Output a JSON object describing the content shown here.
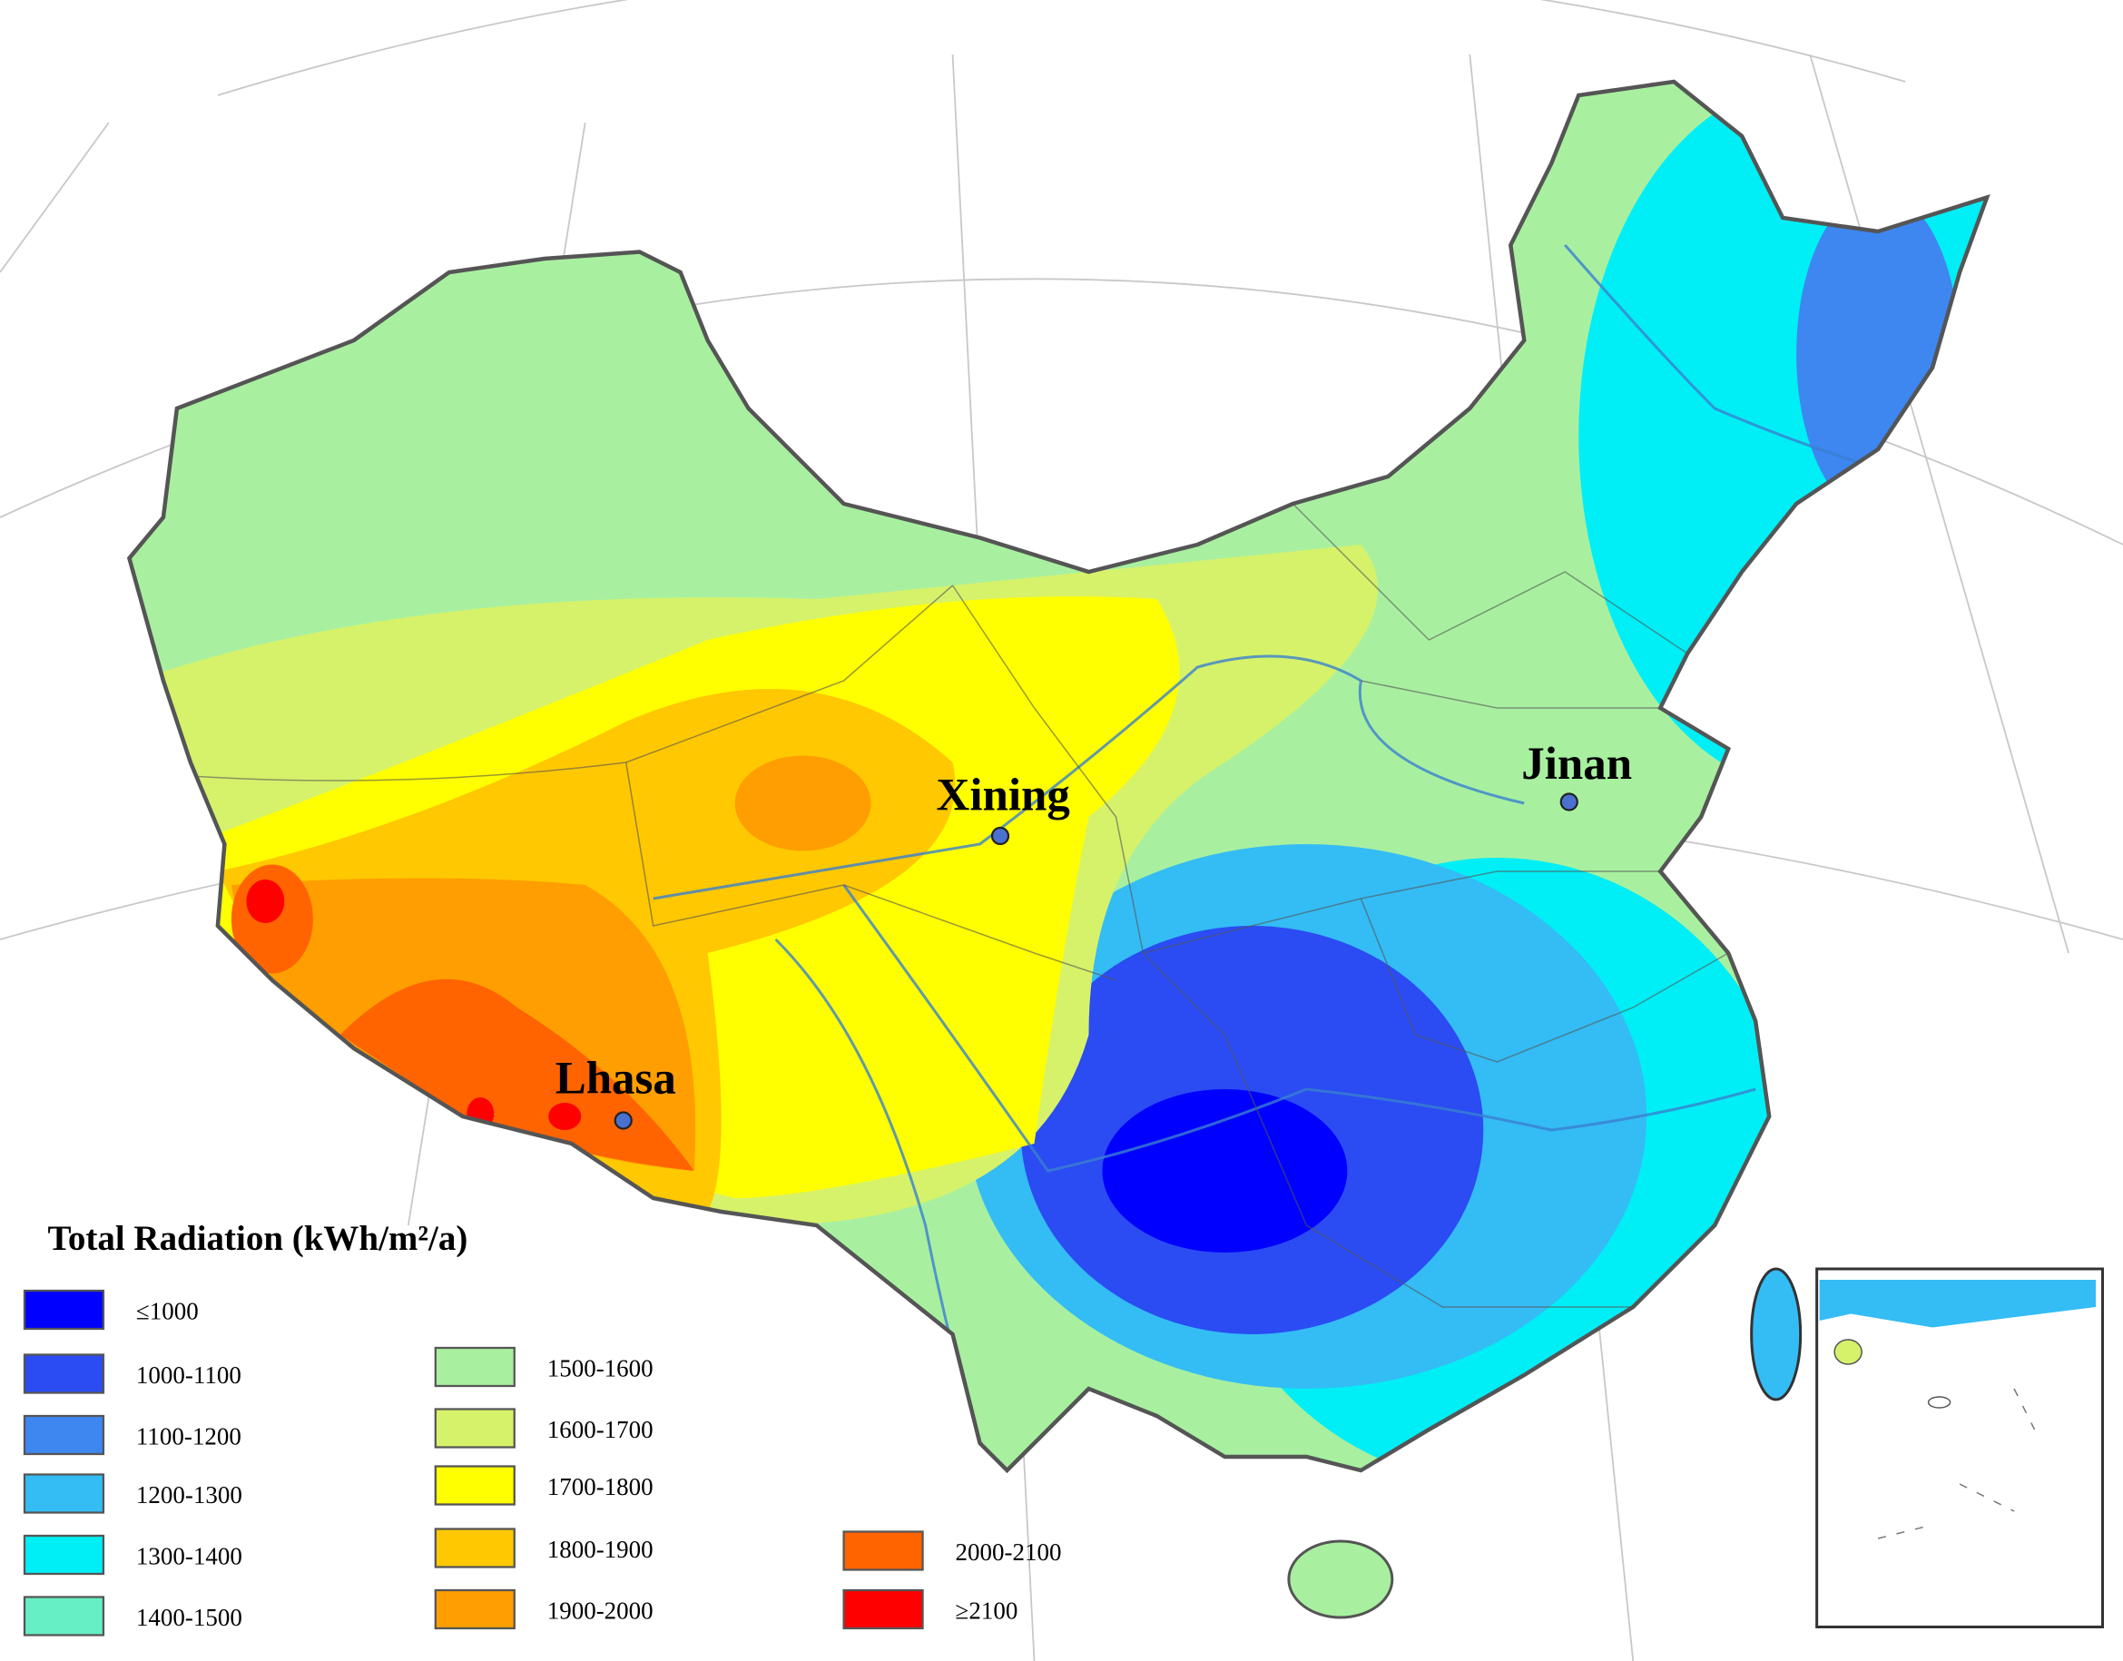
{
  "map": {
    "legend_title": "Total Radiation (kWh/m²/a)",
    "legend": [
      {
        "label": "≤1000",
        "color": "#0000ff"
      },
      {
        "label": "1000-1100",
        "color": "#2a4cf2"
      },
      {
        "label": "1100-1200",
        "color": "#3e86f0"
      },
      {
        "label": "1200-1300",
        "color": "#34bcf5"
      },
      {
        "label": "1300-1400",
        "color": "#00eef5"
      },
      {
        "label": "1400-1500",
        "color": "#66eec4"
      },
      {
        "label": "1500-1600",
        "color": "#a8f0a0"
      },
      {
        "label": "1600-1700",
        "color": "#d6f26a"
      },
      {
        "label": "1700-1800",
        "color": "#ffff00"
      },
      {
        "label": "1800-1900",
        "color": "#ffc800"
      },
      {
        "label": "1900-2000",
        "color": "#ff9e00"
      },
      {
        "label": "2000-2100",
        "color": "#ff6400"
      },
      {
        "label": "≥2100",
        "color": "#ff0000"
      }
    ],
    "cities": [
      "Xining",
      "Jinan",
      "Lhasa"
    ]
  }
}
